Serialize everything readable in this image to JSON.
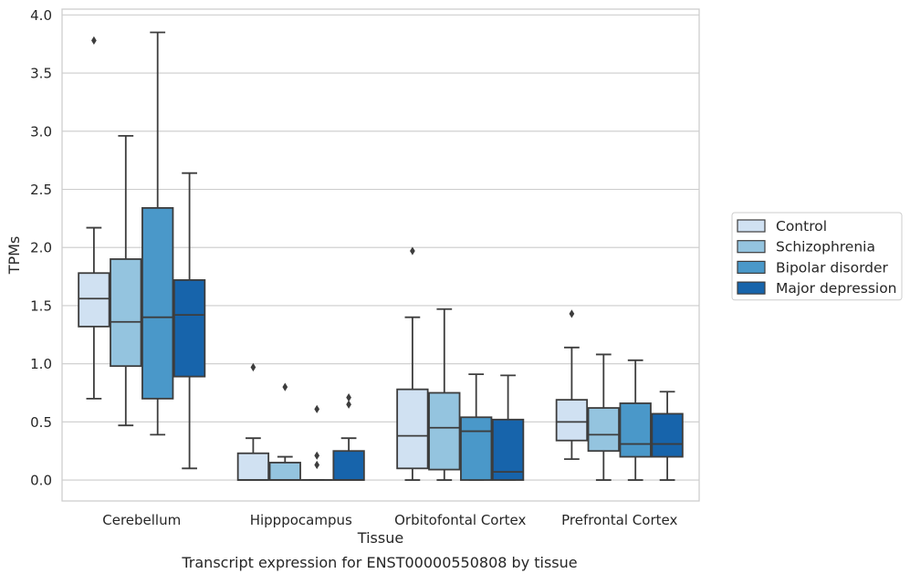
{
  "chart_data": {
    "type": "box",
    "xlabel": "Tissue",
    "ylabel": "TPMs",
    "caption": "Transcript expression for ENST00000550808 by tissue",
    "ylim": [
      -0.18,
      4.05
    ],
    "yticks": [
      "0.0",
      "0.5",
      "1.0",
      "1.5",
      "2.0",
      "2.5",
      "3.0",
      "3.5",
      "4.0"
    ],
    "categories": [
      "Cerebellum",
      "Hipppocampus",
      "Orbitofontal Cortex",
      "Prefrontal Cortex"
    ],
    "grid": "horizontal",
    "legend_position": "right",
    "series": [
      {
        "name": "Control",
        "color": "#d0e1f2",
        "boxes": [
          {
            "whislo": 0.7,
            "q1": 1.32,
            "med": 1.56,
            "q3": 1.78,
            "whishi": 2.17,
            "fliers": [
              3.78
            ]
          },
          {
            "whislo": 0.0,
            "q1": 0.0,
            "med": 0.0,
            "q3": 0.23,
            "whishi": 0.36,
            "fliers": [
              0.97
            ]
          },
          {
            "whislo": 0.0,
            "q1": 0.1,
            "med": 0.38,
            "q3": 0.78,
            "whishi": 1.4,
            "fliers": [
              1.97
            ]
          },
          {
            "whislo": 0.18,
            "q1": 0.34,
            "med": 0.5,
            "q3": 0.69,
            "whishi": 1.14,
            "fliers": [
              1.43
            ]
          }
        ]
      },
      {
        "name": "Schizophrenia",
        "color": "#94c4df",
        "boxes": [
          {
            "whislo": 0.47,
            "q1": 0.98,
            "med": 1.36,
            "q3": 1.9,
            "whishi": 2.96,
            "fliers": []
          },
          {
            "whislo": 0.0,
            "q1": 0.0,
            "med": 0.0,
            "q3": 0.15,
            "whishi": 0.2,
            "fliers": [
              0.8
            ]
          },
          {
            "whislo": 0.0,
            "q1": 0.09,
            "med": 0.45,
            "q3": 0.75,
            "whishi": 1.47,
            "fliers": []
          },
          {
            "whislo": 0.0,
            "q1": 0.25,
            "med": 0.39,
            "q3": 0.62,
            "whishi": 1.08,
            "fliers": []
          }
        ]
      },
      {
        "name": "Bipolar disorder",
        "color": "#4a98c9",
        "boxes": [
          {
            "whislo": 0.39,
            "q1": 0.7,
            "med": 1.4,
            "q3": 2.34,
            "whishi": 3.85,
            "fliers": []
          },
          {
            "whislo": 0.0,
            "q1": 0.0,
            "med": 0.0,
            "q3": 0.0,
            "whishi": 0.0,
            "fliers": [
              0.13,
              0.21,
              0.61
            ]
          },
          {
            "whislo": 0.0,
            "q1": 0.0,
            "med": 0.42,
            "q3": 0.54,
            "whishi": 0.91,
            "fliers": []
          },
          {
            "whislo": 0.0,
            "q1": 0.2,
            "med": 0.31,
            "q3": 0.66,
            "whishi": 1.03,
            "fliers": []
          }
        ]
      },
      {
        "name": "Major depression",
        "color": "#1764ab",
        "boxes": [
          {
            "whislo": 0.1,
            "q1": 0.89,
            "med": 1.42,
            "q3": 1.72,
            "whishi": 2.64,
            "fliers": []
          },
          {
            "whislo": 0.0,
            "q1": 0.0,
            "med": 0.0,
            "q3": 0.25,
            "whishi": 0.36,
            "fliers": [
              0.65,
              0.71
            ]
          },
          {
            "whislo": 0.0,
            "q1": 0.0,
            "med": 0.07,
            "q3": 0.52,
            "whishi": 0.9,
            "fliers": []
          },
          {
            "whislo": 0.0,
            "q1": 0.2,
            "med": 0.31,
            "q3": 0.57,
            "whishi": 0.76,
            "fliers": []
          }
        ]
      }
    ]
  }
}
